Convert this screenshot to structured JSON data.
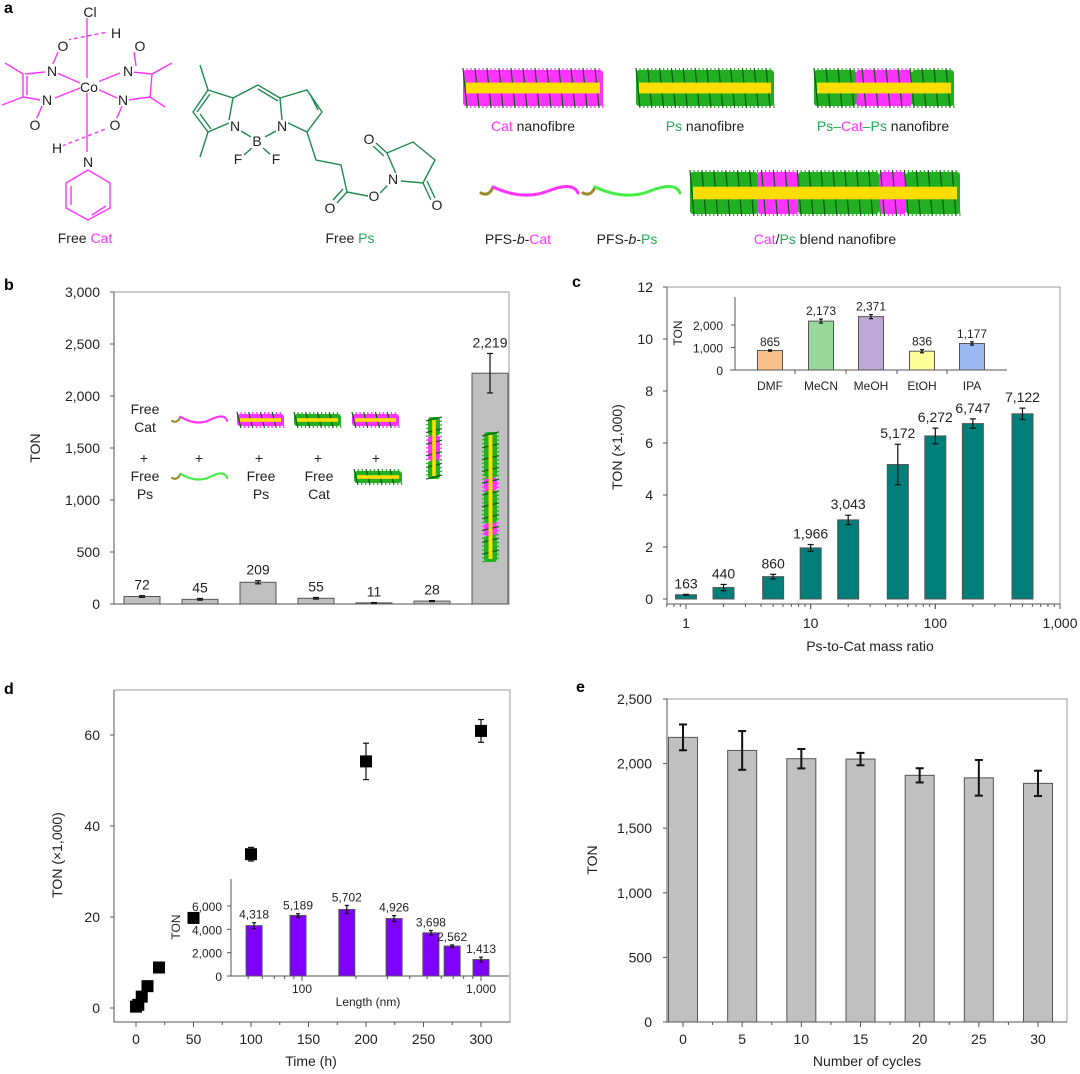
{
  "colors": {
    "cat": "#ff33ff",
    "ps": "#22aa55",
    "ps_mol": "#1e8a4e",
    "ps_bright": "#44ee44",
    "core": "#ffdd00",
    "pfs": "#9a8a2a",
    "gray_bar": "#c0c0c0",
    "teal_bar": "#007f7a",
    "purple_bar": "#8000ff",
    "frame": "#999999"
  },
  "panel_letters": [
    "a",
    "b",
    "c",
    "d",
    "e"
  ],
  "panel_a": {
    "free_cat": {
      "word": "Free ",
      "name": "Cat"
    },
    "free_ps": {
      "word": "Free ",
      "name": "Ps"
    },
    "cat_atoms": [
      "Cl",
      "Co",
      "N",
      "N",
      "N",
      "N",
      "O",
      "O",
      "O",
      "O",
      "H",
      "H",
      "N"
    ],
    "ps_atoms": [
      "N",
      "N",
      "B",
      "F",
      "F",
      "O",
      "O",
      "N",
      "O",
      "O"
    ],
    "cat_nanofibre": {
      "name": "Cat",
      "rest": " nanofibre"
    },
    "ps_nanofibre": {
      "name": "Ps",
      "rest": " nanofibre"
    },
    "pcp_nanofibre": {
      "p1": "Ps",
      "d1": "–",
      "c": "Cat",
      "d2": "–",
      "p2": "Ps",
      "rest": " nanofibre"
    },
    "pfs_b_cat": {
      "pre": "PFS-",
      "b": "b",
      "dash": "-",
      "name": "Cat"
    },
    "pfs_b_ps": {
      "pre": "PFS-",
      "b": "b",
      "dash": "-",
      "name": "Ps"
    },
    "blend": {
      "c": "Cat",
      "slash": "/",
      "p": "Ps",
      "rest": " blend nanofibre"
    }
  },
  "panel_b": {
    "legend": {
      "free": "Free",
      "cat": "Cat",
      "ps": "Ps",
      "plus": "+"
    }
  },
  "chart_data": [
    {
      "id": "b",
      "type": "bar",
      "title": "",
      "xlabel": "",
      "ylabel": "TON",
      "ylim": [
        0,
        3000
      ],
      "yticks": [
        0,
        500,
        1000,
        1500,
        2000,
        2500,
        3000
      ],
      "categories": [
        "Free Cat + Free Ps",
        "PFS-b-Cat + PFS-b-Ps",
        "Cat nanofibre + Free Ps",
        "Ps nanofibre + Free Cat",
        "Cat nanofibre + Ps nanofibre",
        "Ps–Cat–Ps nanofibre",
        "Cat/Ps blend nanofibre"
      ],
      "values": [
        72,
        45,
        209,
        55,
        11,
        28,
        2219
      ],
      "errors": [
        8,
        8,
        15,
        8,
        3,
        5,
        190
      ],
      "labels": [
        "72",
        "45",
        "209",
        "55",
        "11",
        "28",
        "2,219"
      ]
    },
    {
      "id": "c",
      "type": "bar",
      "xscale": "log",
      "xlabel": "Ps-to-Cat mass ratio",
      "ylabel": "TON (×1,000)",
      "ylim": [
        0,
        12
      ],
      "xlim": [
        0.7,
        1000
      ],
      "yticks": [
        0,
        2,
        4,
        6,
        8,
        10,
        12
      ],
      "xticks": [
        1,
        10,
        100,
        1000
      ],
      "xtick_labels": [
        "1",
        "10",
        "100",
        "1,000"
      ],
      "x": [
        1,
        2,
        5,
        10,
        20,
        50,
        100,
        200,
        500
      ],
      "values": [
        0.163,
        0.44,
        0.86,
        1.966,
        3.043,
        5.172,
        6.272,
        6.747,
        7.122
      ],
      "errors": [
        0.015,
        0.12,
        0.09,
        0.13,
        0.18,
        0.78,
        0.3,
        0.18,
        0.22
      ],
      "labels": [
        "163",
        "440",
        "860",
        "1,966",
        "3,043",
        "5,172",
        "6,272",
        "6,747",
        "7,122"
      ]
    },
    {
      "id": "c_inset",
      "type": "bar",
      "ylabel": "TON",
      "ylim": [
        0,
        3200
      ],
      "yticks": [
        0,
        1000,
        2000
      ],
      "ytick_labels": [
        "0",
        "1,000",
        "2,000"
      ],
      "categories": [
        "DMF",
        "MeCN",
        "MeOH",
        "EtOH",
        "IPA"
      ],
      "values": [
        865,
        2173,
        2371,
        836,
        1177
      ],
      "errors": [
        30,
        90,
        90,
        70,
        70
      ],
      "labels": [
        "865",
        "2,173",
        "2,371",
        "836",
        "1,177"
      ],
      "bar_colors": [
        "#f9c08a",
        "#98d89a",
        "#bfa8d6",
        "#ffff99",
        "#9bb8f0"
      ]
    },
    {
      "id": "d",
      "type": "scatter",
      "xlabel": "Time (h)",
      "ylabel": "TON (×1,000)",
      "xlim": [
        -19,
        325
      ],
      "ylim": [
        -3,
        70
      ],
      "xticks": [
        0,
        50,
        100,
        150,
        200,
        250,
        300
      ],
      "yticks": [
        0,
        20,
        40,
        60
      ],
      "x": [
        0,
        2,
        5,
        10,
        20,
        50,
        100,
        200,
        300
      ],
      "y": [
        0.3,
        0.7,
        2.5,
        4.8,
        8.9,
        19.8,
        33.8,
        54.2,
        60.9
      ],
      "errors": [
        0.3,
        0.3,
        0.4,
        0.5,
        0.6,
        1.0,
        1.5,
        4.0,
        2.5
      ]
    },
    {
      "id": "d_inset",
      "type": "bar",
      "xscale": "log",
      "xlabel": "Length (nm)",
      "ylabel": "TON",
      "ylim": [
        0,
        8300
      ],
      "yticks": [
        0,
        2000,
        4000,
        6000
      ],
      "ytick_labels": [
        "0",
        "2,000",
        "4,000",
        "6,000"
      ],
      "xticks": [
        100,
        1000
      ],
      "xtick_labels": [
        "100",
        "1,000"
      ],
      "x": [
        54,
        95,
        178,
        327,
        525,
        690,
        1000
      ],
      "values": [
        4318,
        5189,
        5702,
        4926,
        3698,
        2562,
        1413
      ],
      "errors": [
        250,
        150,
        350,
        250,
        200,
        100,
        200
      ],
      "labels": [
        "4,318",
        "5,189",
        "5,702",
        "4,926",
        "3,698",
        "2,562",
        "1,413"
      ]
    },
    {
      "id": "e",
      "type": "bar",
      "xlabel": "Number of cycles",
      "ylabel": "TON",
      "ylim": [
        0,
        2500
      ],
      "yticks": [
        0,
        500,
        1000,
        1500,
        2000,
        2500
      ],
      "x": [
        0,
        5,
        10,
        15,
        20,
        25,
        30
      ],
      "xticks": [
        0,
        5,
        10,
        15,
        20,
        25,
        30
      ],
      "values": [
        2203,
        2102,
        2038,
        2035,
        1909,
        1890,
        1847
      ],
      "errors": [
        100,
        150,
        75,
        48,
        55,
        138,
        98
      ]
    }
  ]
}
